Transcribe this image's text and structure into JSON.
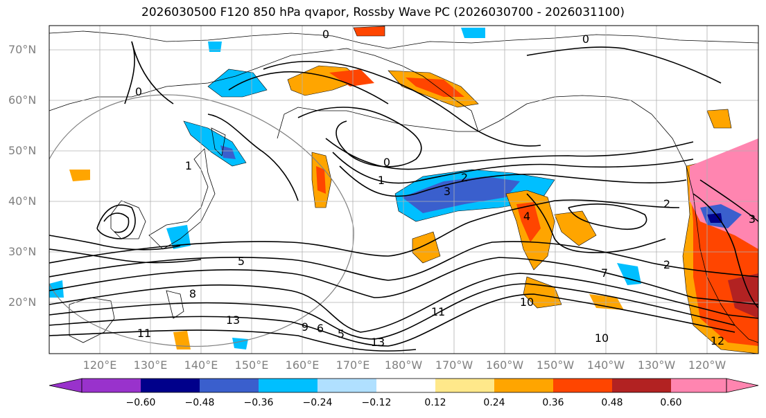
{
  "title": "2026030500 F120 850 hPa qvapor, Rossby Wave PC (2026030700 - 2026031100)",
  "lat_labels": [
    "70°N",
    "60°N",
    "50°N",
    "40°N",
    "30°N",
    "20°N"
  ],
  "lon_labels": [
    "120°E",
    "130°E",
    "140°E",
    "150°E",
    "160°E",
    "170°E",
    "180°W",
    "170°W",
    "160°W",
    "150°W",
    "140°W",
    "130°W",
    "120°W"
  ],
  "contour_labels": [
    "0",
    "0",
    "0",
    "0",
    "1",
    "1",
    "2",
    "2",
    "2",
    "3",
    "3",
    "4",
    "5",
    "5",
    "6",
    "7",
    "8",
    "9",
    "10",
    "10",
    "11",
    "11",
    "12",
    "13",
    "13"
  ],
  "colorbar": {
    "ticks": [
      "−0.60",
      "−0.48",
      "−0.36",
      "−0.24",
      "−0.12",
      "0.12",
      "0.24",
      "0.36",
      "0.48",
      "0.60"
    ],
    "colors": [
      "#9932cc",
      "#00008b",
      "#3a5fcd",
      "#00bfff",
      "#b0e0ff",
      "#ffffff",
      "#ffe88a",
      "#ffa500",
      "#ff4500",
      "#b22222",
      "#ff85b0"
    ]
  }
}
